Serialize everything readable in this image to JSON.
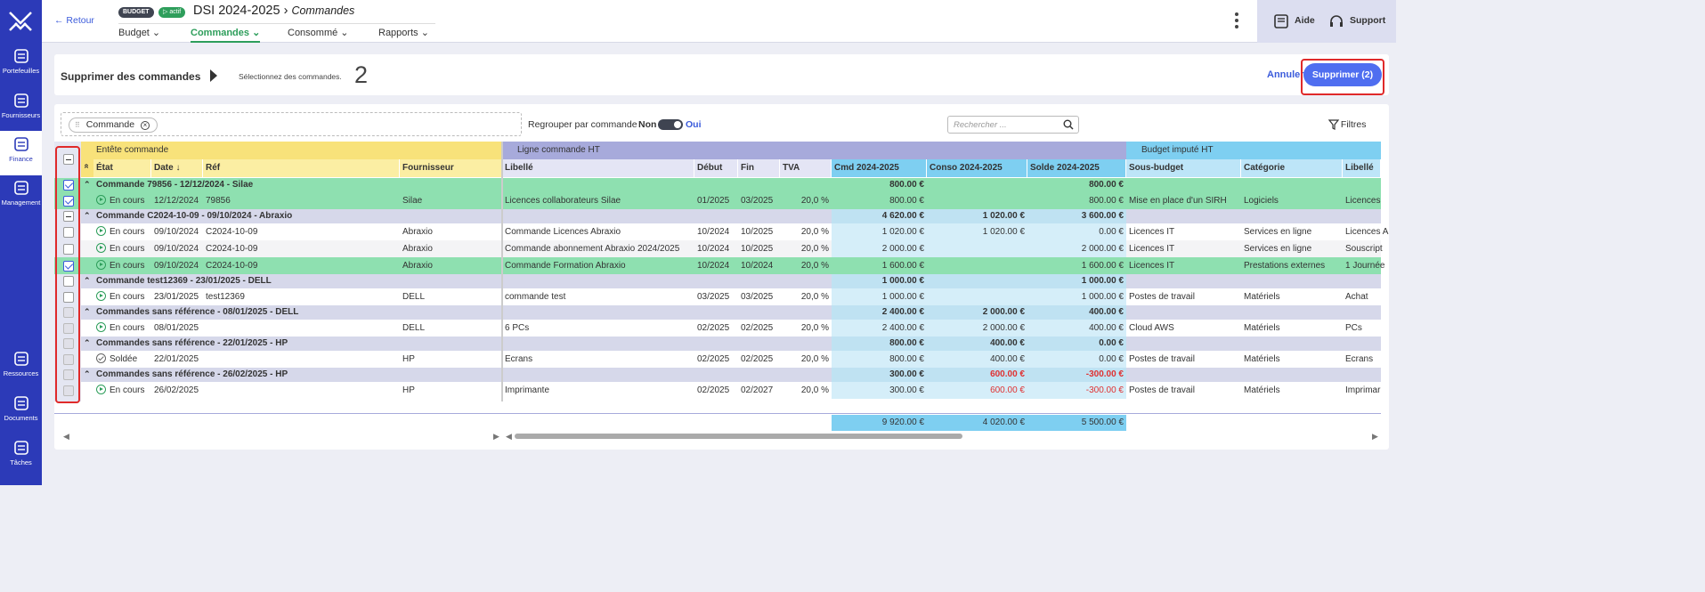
{
  "sidebar": {
    "items": [
      {
        "label": "Portefeuilles",
        "icon": "portfolio-icon"
      },
      {
        "label": "Fournisseurs",
        "icon": "suppliers-icon"
      },
      {
        "label": "Finance",
        "icon": "finance-icon",
        "active": true
      },
      {
        "label": "Management",
        "icon": "users-icon"
      },
      {
        "label": "Ressources",
        "icon": "resources-icon"
      },
      {
        "label": "Documents",
        "icon": "folder-icon"
      },
      {
        "label": "Tâches",
        "icon": "tasks-icon"
      }
    ]
  },
  "header": {
    "back": "← Retour",
    "badge_budget": "BUDGET",
    "badge_status": "▷ actif",
    "title": "DSI 2024-2025",
    "subtitle": "Commandes",
    "tabs": [
      {
        "label": "Budget ⌄"
      },
      {
        "label": "Commandes ⌄",
        "active": true
      },
      {
        "label": "Consommé ⌄"
      },
      {
        "label": "Rapports ⌄"
      }
    ],
    "help": "Aide",
    "support": "Support"
  },
  "action_panel": {
    "label": "Supprimer des commandes",
    "hint": "Sélectionnez des commandes.",
    "count": "2",
    "cancel": "Annuler",
    "delete": "Supprimer (2)"
  },
  "toolbar": {
    "chip": "Commande",
    "group_label": "Regrouper par commande",
    "toggle_off": "Non",
    "toggle_on": "Oui",
    "search_placeholder": "Rechercher ...",
    "filters": "Filtres"
  },
  "grid": {
    "group_headers": [
      "Entête commande",
      "Ligne commande HT",
      "Budget imputé HT"
    ],
    "columns": [
      "État",
      "Date ↓",
      "Réf",
      "Fournisseur",
      "Libellé",
      "Début",
      "Fin",
      "TVA",
      "Cmd 2024-2025",
      "Conso 2024-2025",
      "Solde 2024-2025",
      "Sous-budget",
      "Catégorie",
      "Libellé"
    ],
    "rows": [
      {
        "type": "group",
        "checked": "checked",
        "hl": true,
        "label": "Commande 79856 - 12/12/2024 - Silae",
        "cmd": "800.00 €",
        "conso": "",
        "solde": "800.00 €"
      },
      {
        "type": "line",
        "checked": "checked",
        "hl": true,
        "etat": "En cours",
        "date": "12/12/2024",
        "ref": "79856",
        "fournisseur": "Silae",
        "libelle": "Licences collaborateurs Silae",
        "debut": "01/2025",
        "fin": "03/2025",
        "tva": "20,0 %",
        "cmd": "800.00 €",
        "conso": "",
        "solde": "800.00 €",
        "sous_budget": "Mise en place d'un SIRH",
        "categorie": "Logiciels",
        "libelle2": "Licences"
      },
      {
        "type": "group",
        "checked": "partial",
        "label": "Commande C2024-10-09 - 09/10/2024 - Abraxio",
        "cmd": "4 620.00 €",
        "conso": "1 020.00 €",
        "solde": "3 600.00 €"
      },
      {
        "type": "line",
        "checked": "",
        "etat": "En cours",
        "date": "09/10/2024",
        "ref": "C2024-10-09",
        "fournisseur": "Abraxio",
        "libelle": "Commande Licences Abraxio",
        "debut": "10/2024",
        "fin": "10/2025",
        "tva": "20,0 %",
        "cmd": "1 020.00 €",
        "conso": "1 020.00 €",
        "solde": "0.00 €",
        "sous_budget": "Licences IT",
        "categorie": "Services en ligne",
        "libelle2": "Licences A"
      },
      {
        "type": "line",
        "checked": "",
        "etat": "En cours",
        "date": "09/10/2024",
        "ref": "C2024-10-09",
        "fournisseur": "Abraxio",
        "libelle": "Commande abonnement Abraxio 2024/2025",
        "debut": "10/2024",
        "fin": "10/2025",
        "tva": "20,0 %",
        "cmd": "2 000.00 €",
        "conso": "",
        "solde": "2 000.00 €",
        "sous_budget": "Licences IT",
        "categorie": "Services en ligne",
        "libelle2": "Souscript"
      },
      {
        "type": "line",
        "checked": "checked",
        "hl": true,
        "etat": "En cours",
        "date": "09/10/2024",
        "ref": "C2024-10-09",
        "fournisseur": "Abraxio",
        "libelle": "Commande Formation Abraxio",
        "debut": "10/2024",
        "fin": "10/2024",
        "tva": "20,0 %",
        "cmd": "1 600.00 €",
        "conso": "",
        "solde": "1 600.00 €",
        "sous_budget": "Licences IT",
        "categorie": "Prestations externes",
        "libelle2": "1 Journée"
      },
      {
        "type": "group",
        "checked": "",
        "label": "Commande test12369 - 23/01/2025 - DELL",
        "cmd": "1 000.00 €",
        "conso": "",
        "solde": "1 000.00 €"
      },
      {
        "type": "line",
        "checked": "",
        "etat": "En cours",
        "date": "23/01/2025",
        "ref": "test12369",
        "fournisseur": "DELL",
        "libelle": "commande test",
        "debut": "03/2025",
        "fin": "03/2025",
        "tva": "20,0 %",
        "cmd": "1 000.00 €",
        "conso": "",
        "solde": "1 000.00 €",
        "sous_budget": "Postes de travail",
        "categorie": "Matériels",
        "libelle2": "Achat"
      },
      {
        "type": "group",
        "checked": "disabled",
        "label": "Commandes sans référence - 08/01/2025 - DELL",
        "cmd": "2 400.00 €",
        "conso": "2 000.00 €",
        "solde": "400.00 €"
      },
      {
        "type": "line",
        "checked": "disabled",
        "etat": "En cours",
        "date": "08/01/2025",
        "ref": "",
        "fournisseur": "DELL",
        "libelle": "6 PCs",
        "debut": "02/2025",
        "fin": "02/2025",
        "tva": "20,0 %",
        "cmd": "2 400.00 €",
        "conso": "2 000.00 €",
        "solde": "400.00 €",
        "sous_budget": "Cloud AWS",
        "categorie": "Matériels",
        "libelle2": "PCs"
      },
      {
        "type": "group",
        "checked": "disabled",
        "label": "Commandes sans référence - 22/01/2025 - HP",
        "cmd": "800.00 €",
        "conso": "400.00 €",
        "solde": "0.00 €"
      },
      {
        "type": "line",
        "checked": "disabled",
        "status": "done",
        "etat": "Soldée",
        "date": "22/01/2025",
        "ref": "",
        "fournisseur": "HP",
        "libelle": "Ecrans",
        "debut": "02/2025",
        "fin": "02/2025",
        "tva": "20,0 %",
        "cmd": "800.00 €",
        "conso": "400.00 €",
        "solde": "0.00 €",
        "sous_budget": "Postes de travail",
        "categorie": "Matériels",
        "libelle2": "Ecrans"
      },
      {
        "type": "group",
        "checked": "disabled",
        "label": "Commandes sans référence - 26/02/2025 - HP",
        "cmd": "300.00 €",
        "conso": "600.00 €",
        "solde": "-300.00 €",
        "neg": true
      },
      {
        "type": "line",
        "checked": "disabled",
        "etat": "En cours",
        "date": "26/02/2025",
        "ref": "",
        "fournisseur": "HP",
        "libelle": "Imprimante",
        "debut": "02/2025",
        "fin": "02/2027",
        "tva": "20,0 %",
        "cmd": "300.00 €",
        "conso": "600.00 €",
        "solde": "-300.00 €",
        "sous_budget": "Postes de travail",
        "categorie": "Matériels",
        "libelle2": "Imprimar",
        "neg": true
      }
    ],
    "totals": {
      "cmd": "9 920.00 €",
      "conso": "4 020.00 €",
      "solde": "5 500.00 €"
    }
  },
  "colors": {
    "accent": "#2c3ab8",
    "highlight": "#8ee0b0",
    "group": "#d6d8ea",
    "amber": "#f8e27a",
    "lavender": "#a7aadb",
    "sky": "#7ecff1"
  }
}
